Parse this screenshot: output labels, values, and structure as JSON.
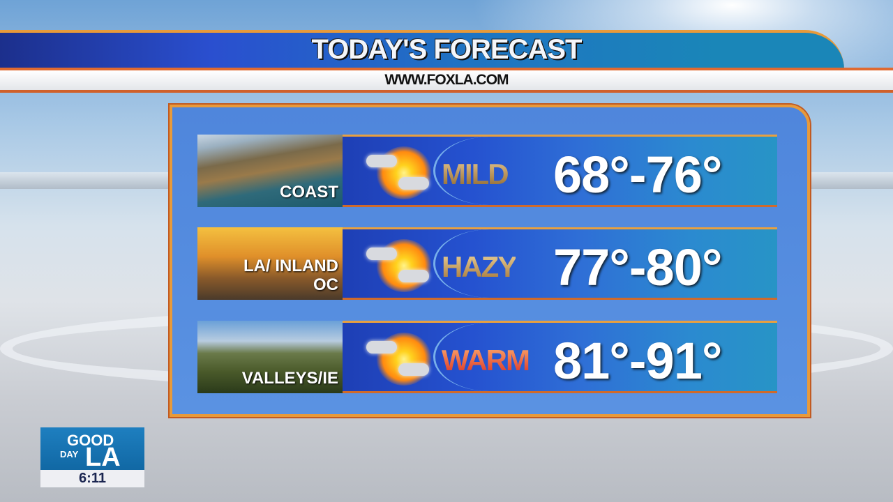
{
  "header": {
    "title": "TODAY'S FORECAST",
    "url": "WWW.FOXLA.COM"
  },
  "forecast": [
    {
      "region": "COAST",
      "condition": "MILD",
      "temps": "68°-76°",
      "icon": "partly-sunny-icon",
      "condition_color": "#b38a4a"
    },
    {
      "region": "LA/ INLAND OC",
      "condition": "HAZY",
      "temps": "77°-80°",
      "icon": "partly-sunny-icon",
      "condition_color": "#c79a50"
    },
    {
      "region": "VALLEYS/IE",
      "condition": "WARM",
      "temps": "81°-91°",
      "icon": "partly-sunny-icon",
      "condition_color": "#e0402a"
    }
  ],
  "logo": {
    "good": "GOOD",
    "day": "DAY",
    "la": "LA",
    "time": "6:11"
  }
}
